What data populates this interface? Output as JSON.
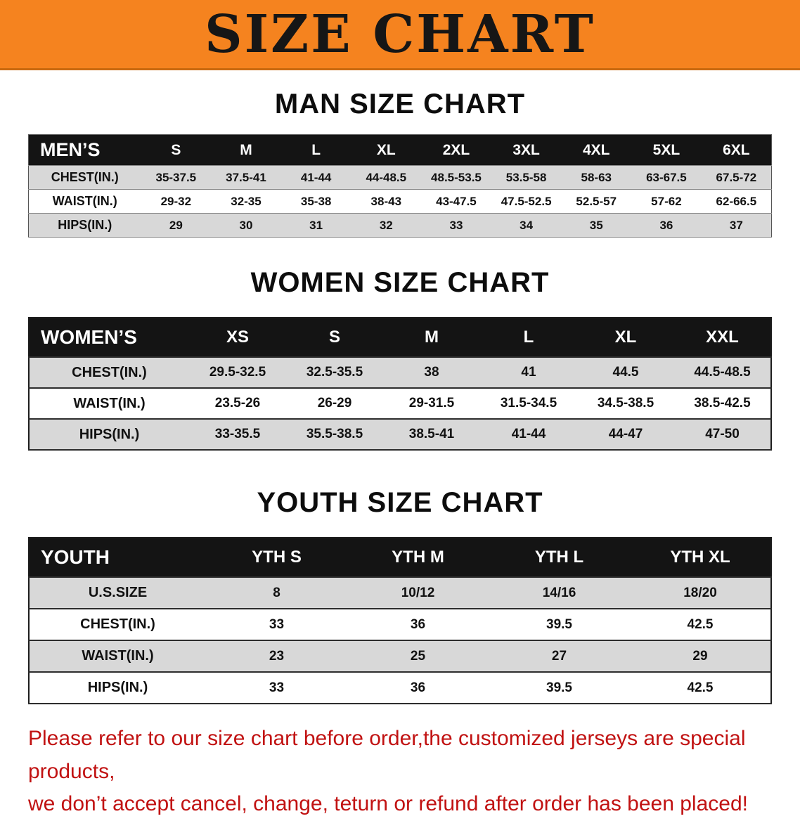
{
  "banner": {
    "title": "SIZE CHART"
  },
  "colors": {
    "banner_bg": "#f5831f",
    "table_header_bg": "#141414",
    "row_alt_bg": "#d8d8d8",
    "disclaimer_text": "#c11212"
  },
  "sections": [
    {
      "heading": "MAN SIZE CHART",
      "group_label": "MEN’S",
      "columns": [
        "S",
        "M",
        "L",
        "XL",
        "2XL",
        "3XL",
        "4XL",
        "5XL",
        "6XL"
      ],
      "rows": [
        {
          "label": "CHEST(IN.)",
          "values": [
            "35-37.5",
            "37.5-41",
            "41-44",
            "44-48.5",
            "48.5-53.5",
            "53.5-58",
            "58-63",
            "63-67.5",
            "67.5-72"
          ]
        },
        {
          "label": "WAIST(IN.)",
          "values": [
            "29-32",
            "32-35",
            "35-38",
            "38-43",
            "43-47.5",
            "47.5-52.5",
            "52.5-57",
            "57-62",
            "62-66.5"
          ]
        },
        {
          "label": "HIPS(IN.)",
          "values": [
            "29",
            "30",
            "31",
            "32",
            "33",
            "34",
            "35",
            "36",
            "37"
          ]
        }
      ]
    },
    {
      "heading": "WOMEN SIZE CHART",
      "group_label": "WOMEN’S",
      "columns": [
        "XS",
        "S",
        "M",
        "L",
        "XL",
        "XXL"
      ],
      "rows": [
        {
          "label": "CHEST(IN.)",
          "values": [
            "29.5-32.5",
            "32.5-35.5",
            "38",
            "41",
            "44.5",
            "44.5-48.5"
          ]
        },
        {
          "label": "WAIST(IN.)",
          "values": [
            "23.5-26",
            "26-29",
            "29-31.5",
            "31.5-34.5",
            "34.5-38.5",
            "38.5-42.5"
          ]
        },
        {
          "label": "HIPS(IN.)",
          "values": [
            "33-35.5",
            "35.5-38.5",
            "38.5-41",
            "41-44",
            "44-47",
            "47-50"
          ]
        }
      ]
    },
    {
      "heading": "YOUTH SIZE CHART",
      "group_label": "YOUTH",
      "columns": [
        "YTH S",
        "YTH M",
        "YTH L",
        "YTH XL"
      ],
      "rows": [
        {
          "label": "U.S.SIZE",
          "values": [
            "8",
            "10/12",
            "14/16",
            "18/20"
          ]
        },
        {
          "label": "CHEST(IN.)",
          "values": [
            "33",
            "36",
            "39.5",
            "42.5"
          ]
        },
        {
          "label": "WAIST(IN.)",
          "values": [
            "23",
            "25",
            "27",
            "29"
          ]
        },
        {
          "label": "HIPS(IN.)",
          "values": [
            "33",
            "36",
            "39.5",
            "42.5"
          ]
        }
      ]
    }
  ],
  "disclaimer": {
    "line1": "Please refer to our size chart before order,the customized jerseys are special products,",
    "line2": "we don’t accept cancel, change, teturn or refund after order has been placed!"
  }
}
